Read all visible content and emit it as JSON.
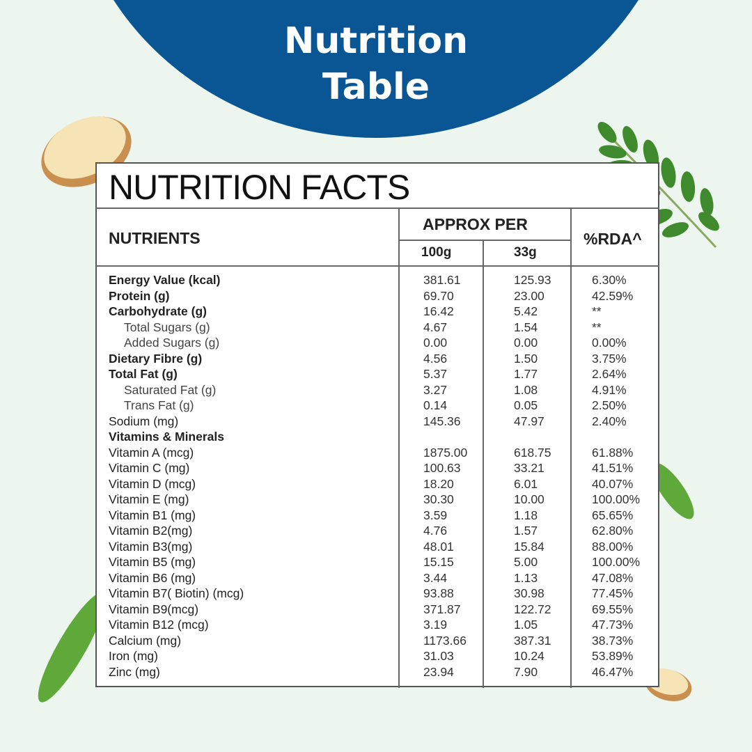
{
  "header": {
    "title": "Nutrition Table"
  },
  "table": {
    "heading": "NUTRITION FACTS",
    "columns": {
      "nutrients": "NUTRIENTS",
      "approx_per": "APPROX PER",
      "per_100g": "100g",
      "per_33g": "33g",
      "rda": "%RDA^"
    },
    "rows": [
      {
        "style": "bold",
        "cells": [
          "Energy Value (kcal)",
          "381.61",
          "125.93",
          "6.30%"
        ]
      },
      {
        "style": "bold",
        "cells": [
          "Protein (g)",
          "69.70",
          "23.00",
          "42.59%"
        ]
      },
      {
        "style": "bold",
        "cells": [
          "Carbohydrate (g)",
          "16.42",
          "5.42",
          "**"
        ]
      },
      {
        "style": "indent",
        "cells": [
          "Total Sugars (g)",
          "4.67",
          "1.54",
          "**"
        ]
      },
      {
        "style": "indent",
        "cells": [
          "Added Sugars (g)",
          "0.00",
          "0.00",
          "0.00%"
        ]
      },
      {
        "style": "bold",
        "cells": [
          "Dietary Fibre (g)",
          "4.56",
          "1.50",
          "3.75%"
        ]
      },
      {
        "style": "bold",
        "cells": [
          "Total Fat (g)",
          "5.37",
          "1.77",
          "2.64%"
        ]
      },
      {
        "style": "indent",
        "cells": [
          "Saturated Fat (g)",
          "3.27",
          "1.08",
          "4.91%"
        ]
      },
      {
        "style": "indent",
        "cells": [
          "Trans Fat (g)",
          "0.14",
          "0.05",
          "2.50%"
        ]
      },
      {
        "style": "plain",
        "cells": [
          "Sodium (mg)",
          "145.36",
          "47.97",
          "2.40%"
        ]
      },
      {
        "style": "bold",
        "cells": [
          "Vitamins & Minerals",
          null,
          null,
          null
        ]
      },
      {
        "style": "plain",
        "cells": [
          "Vitamin A (mcg)",
          "1875.00",
          "618.75",
          "61.88%"
        ]
      },
      {
        "style": "plain",
        "cells": [
          "Vitamin C (mg)",
          "100.63",
          "33.21",
          "41.51%"
        ]
      },
      {
        "style": "plain",
        "cells": [
          "Vitamin D (mcg)",
          "18.20",
          "6.01",
          "40.07%"
        ]
      },
      {
        "style": "plain",
        "cells": [
          "Vitamin E (mg)",
          "30.30",
          "10.00",
          "100.00%"
        ]
      },
      {
        "style": "plain",
        "cells": [
          "Vitamin B1 (mg)",
          "3.59",
          "1.18",
          "65.65%"
        ]
      },
      {
        "style": "plain",
        "cells": [
          "Vitamin B2(mg)",
          "4.76",
          "1.57",
          "62.80%"
        ]
      },
      {
        "style": "plain",
        "cells": [
          "Vitamin B3(mg)",
          "48.01",
          "15.84",
          "88.00%"
        ]
      },
      {
        "style": "plain",
        "cells": [
          "Vitamin B5 (mg)",
          "15.15",
          "5.00",
          "100.00%"
        ]
      },
      {
        "style": "plain",
        "cells": [
          "Vitamin B6 (mg)",
          "3.44",
          "1.13",
          "47.08%"
        ]
      },
      {
        "style": "plain",
        "cells": [
          "Vitamin B7( Biotin) (mcg)",
          "93.88",
          "30.98",
          "77.45%"
        ]
      },
      {
        "style": "plain",
        "cells": [
          "Vitamin B9(mcg)",
          "371.87",
          "122.72",
          "69.55%"
        ]
      },
      {
        "style": "plain",
        "cells": [
          "Vitamin B12 (mcg)",
          "3.19",
          "1.05",
          "47.73%"
        ]
      },
      {
        "style": "plain",
        "cells": [
          "Calcium (mg)",
          "1173.66",
          "387.31",
          "38.73%"
        ]
      },
      {
        "style": "plain",
        "cells": [
          "Iron (mg)",
          "31.03",
          "10.24",
          "53.89%"
        ]
      },
      {
        "style": "plain",
        "cells": [
          "Zinc (mg)",
          "23.94",
          "7.90",
          "46.47%"
        ]
      }
    ]
  }
}
